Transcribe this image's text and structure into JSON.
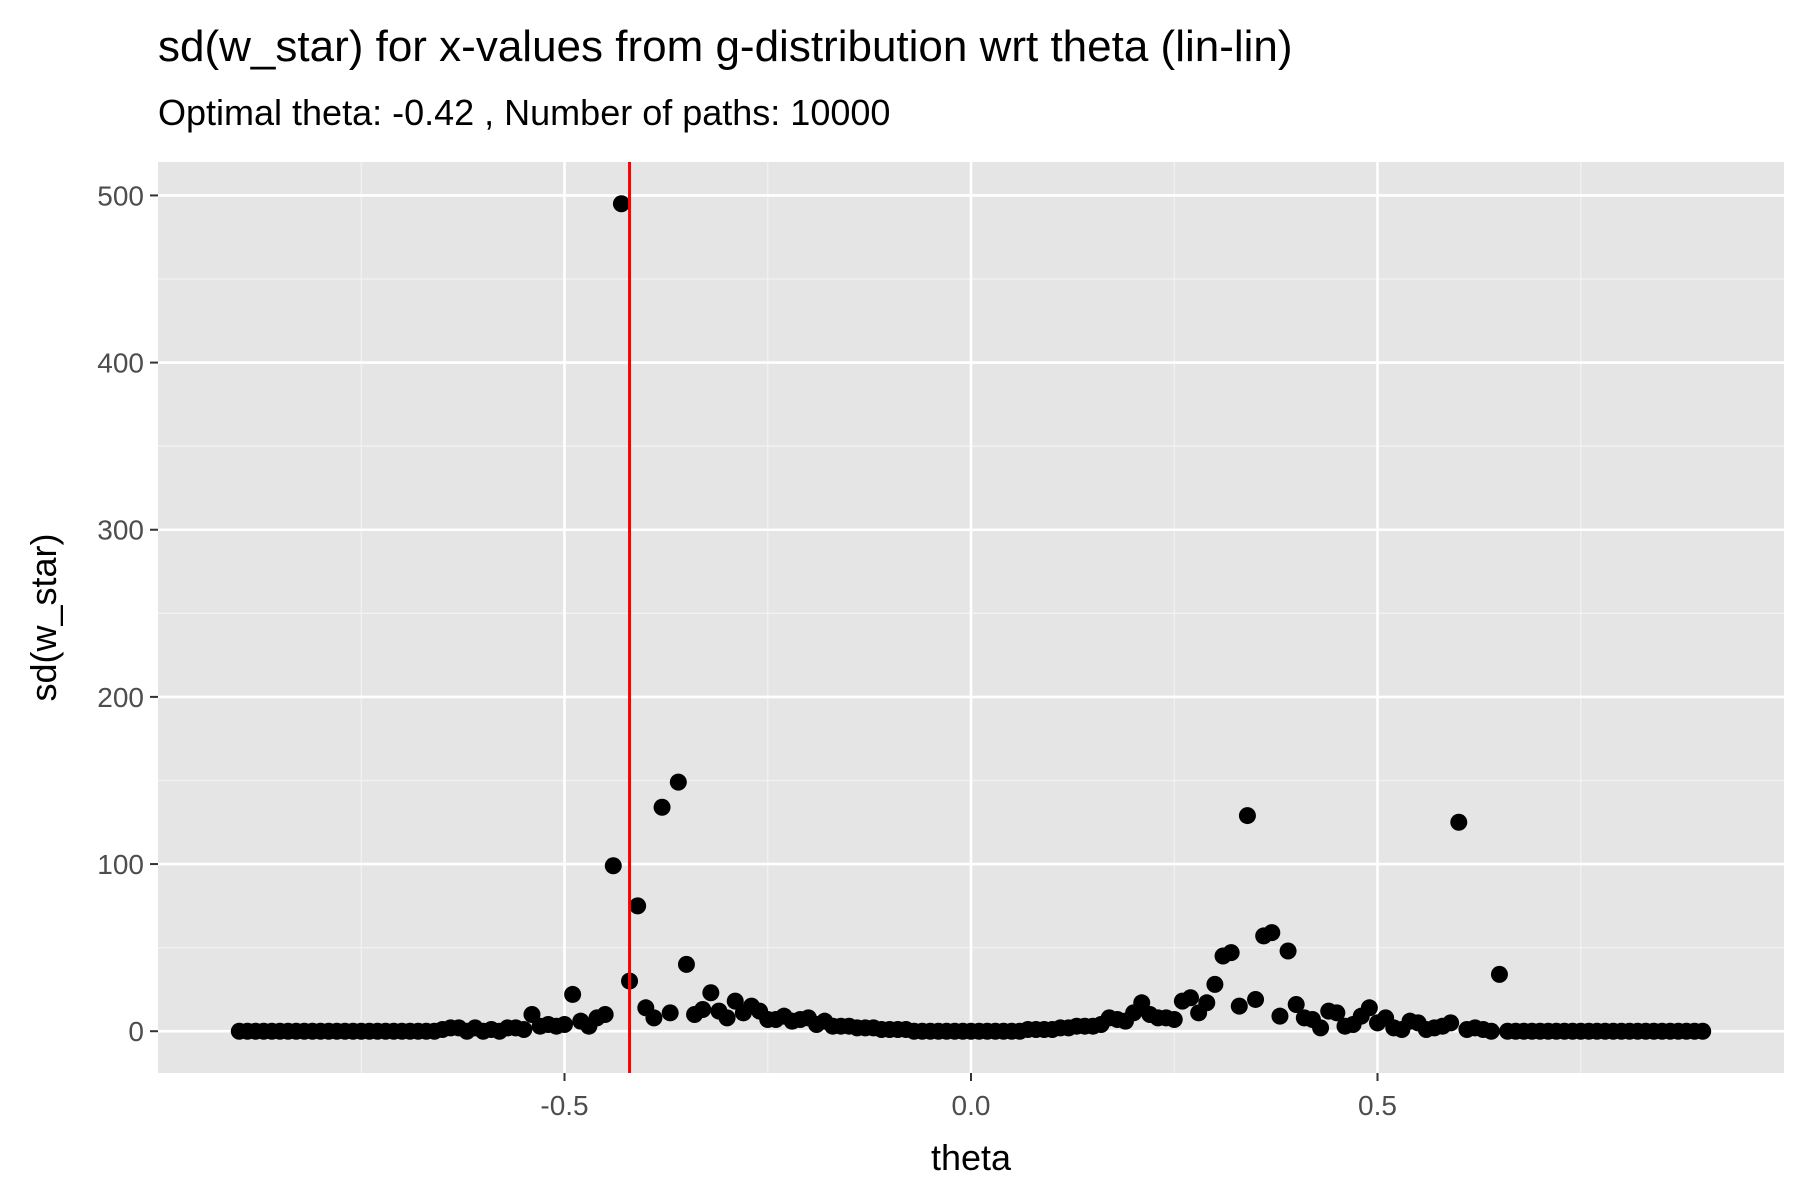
{
  "chart_data": {
    "type": "scatter",
    "title": "sd(w_star) for x-values from g-distribution wrt theta (lin-lin)",
    "subtitle": "Optimal theta:  -0.42 , Number of paths:  10000",
    "xlabel": "theta",
    "ylabel": "sd(w_star)",
    "xlim": [
      -1.0,
      1.0
    ],
    "ylim": [
      -25,
      520
    ],
    "x_ticks": [
      -0.5,
      0.0,
      0.5
    ],
    "x_tick_labels": [
      "-0.5",
      "0.0",
      "0.5"
    ],
    "y_ticks": [
      0,
      100,
      200,
      300,
      400,
      500
    ],
    "y_tick_labels": [
      "0",
      "100",
      "200",
      "300",
      "400",
      "500"
    ],
    "grid": true,
    "background": "#e5e5e5",
    "point_color": "#000000",
    "reference_line": {
      "orientation": "vertical",
      "x": -0.42,
      "color": "#ff0000"
    },
    "x": [
      -0.9,
      -0.89,
      -0.88,
      -0.87,
      -0.86,
      -0.85,
      -0.84,
      -0.83,
      -0.82,
      -0.81,
      -0.8,
      -0.79,
      -0.78,
      -0.77,
      -0.76,
      -0.75,
      -0.74,
      -0.73,
      -0.72,
      -0.71,
      -0.7,
      -0.69,
      -0.68,
      -0.67,
      -0.66,
      -0.65,
      -0.64,
      -0.63,
      -0.62,
      -0.61,
      -0.6,
      -0.59,
      -0.58,
      -0.57,
      -0.56,
      -0.55,
      -0.54,
      -0.53,
      -0.52,
      -0.51,
      -0.5,
      -0.49,
      -0.48,
      -0.47,
      -0.46,
      -0.45,
      -0.44,
      -0.43,
      -0.42,
      -0.41,
      -0.4,
      -0.39,
      -0.38,
      -0.37,
      -0.36,
      -0.35,
      -0.34,
      -0.33,
      -0.32,
      -0.31,
      -0.3,
      -0.29,
      -0.28,
      -0.27,
      -0.26,
      -0.25,
      -0.24,
      -0.23,
      -0.22,
      -0.21,
      -0.2,
      -0.19,
      -0.18,
      -0.17,
      -0.16,
      -0.15,
      -0.14,
      -0.13,
      -0.12,
      -0.11,
      -0.1,
      -0.09,
      -0.08,
      -0.07,
      -0.06,
      -0.05,
      -0.04,
      -0.03,
      -0.02,
      -0.01,
      0.0,
      0.01,
      0.02,
      0.03,
      0.04,
      0.05,
      0.06,
      0.07,
      0.08,
      0.09,
      0.1,
      0.11,
      0.12,
      0.13,
      0.14,
      0.15,
      0.16,
      0.17,
      0.18,
      0.19,
      0.2,
      0.21,
      0.22,
      0.23,
      0.24,
      0.25,
      0.26,
      0.27,
      0.28,
      0.29,
      0.3,
      0.31,
      0.32,
      0.33,
      0.34,
      0.35,
      0.36,
      0.37,
      0.38,
      0.39,
      0.4,
      0.41,
      0.42,
      0.43,
      0.44,
      0.45,
      0.46,
      0.47,
      0.48,
      0.49,
      0.5,
      0.51,
      0.52,
      0.53,
      0.54,
      0.55,
      0.56,
      0.57,
      0.58,
      0.59,
      0.6,
      0.61,
      0.62,
      0.63,
      0.64,
      0.65,
      0.66,
      0.67,
      0.68,
      0.69,
      0.7,
      0.71,
      0.72,
      0.73,
      0.74,
      0.75,
      0.76,
      0.77,
      0.78,
      0.79,
      0.8,
      0.81,
      0.82,
      0.83,
      0.84,
      0.85,
      0.86,
      0.87,
      0.88,
      0.89,
      0.9
    ],
    "y": [
      0,
      0,
      0,
      0,
      0,
      0,
      0,
      0,
      0,
      0,
      0,
      0,
      0,
      0,
      0,
      0,
      0,
      0,
      0,
      0,
      0,
      0,
      0,
      0,
      0,
      1,
      2,
      2,
      0,
      2,
      0,
      1,
      0,
      2,
      2,
      1,
      10,
      3,
      4,
      3,
      4,
      22,
      6,
      3,
      8,
      10,
      99,
      495,
      30,
      75,
      14,
      8,
      134,
      11,
      149,
      40,
      10,
      13,
      23,
      12,
      8,
      18,
      11,
      15,
      12,
      7,
      7,
      9,
      6,
      7,
      8,
      4,
      6,
      3,
      3,
      3,
      2,
      2,
      2,
      1,
      1,
      1,
      1,
      0,
      0,
      0,
      0,
      0,
      0,
      0,
      0,
      0,
      0,
      0,
      0,
      0,
      0,
      1,
      1,
      1,
      1,
      2,
      2,
      3,
      3,
      3,
      4,
      8,
      7,
      6,
      11,
      17,
      10,
      8,
      8,
      7,
      18,
      20,
      11,
      17,
      28,
      45,
      47,
      15,
      129,
      19,
      57,
      59,
      9,
      48,
      16,
      8,
      7,
      2,
      12,
      11,
      3,
      4,
      9,
      14,
      5,
      8,
      2,
      1,
      6,
      5,
      1,
      2,
      3,
      5,
      125,
      1,
      2,
      1,
      0,
      34,
      0,
      0,
      0,
      0,
      0,
      0,
      0,
      0,
      0,
      0,
      0,
      0,
      0,
      0,
      0,
      0,
      0,
      0,
      0,
      0,
      0,
      0,
      0,
      0,
      0
    ]
  }
}
